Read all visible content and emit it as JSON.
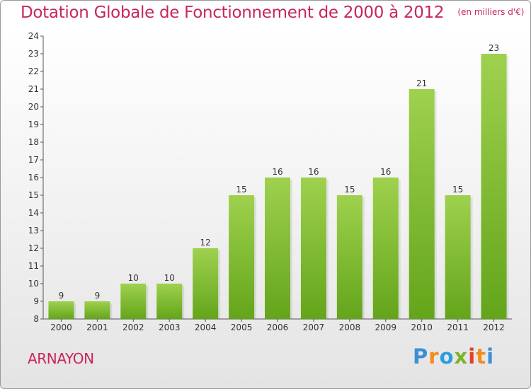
{
  "header": {
    "title": "Dotation Globale de Fonctionnement de 2000 à 2012",
    "subtitle": "(en milliers d'€)"
  },
  "footer": {
    "commune": "ARNAYON",
    "logo": "Proxiti"
  },
  "colors": {
    "title": "#c8265a",
    "bar_light": "#9fd14e",
    "bar_dark": "#63a51a",
    "logo_letters": [
      "#3b8fd6",
      "#f28c1b",
      "#2b9fd9",
      "#7ab52a",
      "#e63e2a",
      "#f28c1b",
      "#3b8fd6"
    ]
  },
  "chart_data": {
    "type": "bar",
    "title": "Dotation Globale de Fonctionnement de 2000 à 2012",
    "subtitle": "(en milliers d'€)",
    "categories": [
      "2000",
      "2001",
      "2002",
      "2003",
      "2004",
      "2005",
      "2006",
      "2007",
      "2008",
      "2009",
      "2010",
      "2011",
      "2012"
    ],
    "values": [
      9,
      9,
      10,
      10,
      12,
      15,
      16,
      16,
      15,
      16,
      21,
      15,
      23
    ],
    "ylim": [
      8,
      24
    ],
    "yticks": [
      8,
      9,
      10,
      11,
      12,
      13,
      14,
      15,
      16,
      17,
      18,
      19,
      20,
      21,
      22,
      23,
      24
    ],
    "xlabel": "",
    "ylabel": "",
    "grid": false,
    "data_labels": true
  }
}
